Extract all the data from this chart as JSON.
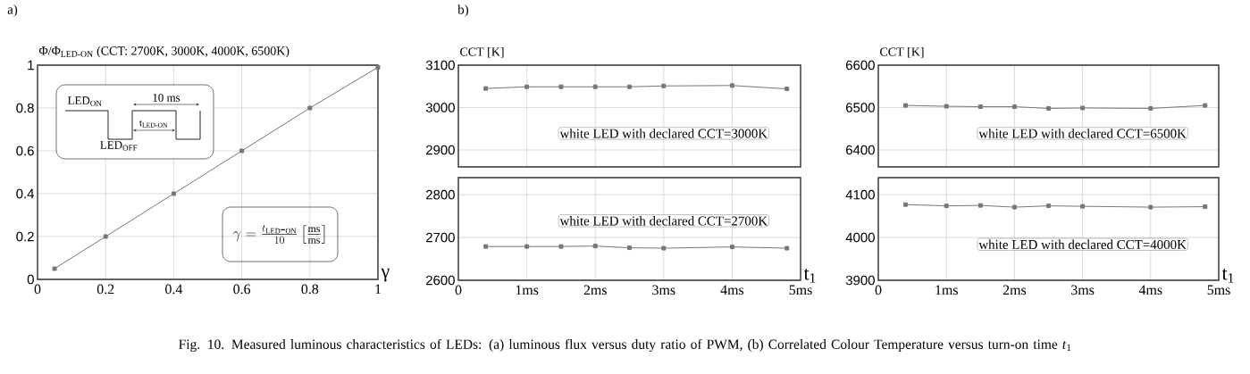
{
  "chart_data": [
    {
      "type": "line",
      "x": [
        0.05,
        0.2,
        0.4,
        0.6,
        0.8,
        1
      ],
      "xlim": [
        0,
        1
      ],
      "ylim": [
        0,
        1
      ],
      "xticks": [
        0,
        0.2,
        0.4,
        0.6,
        0.8,
        1
      ],
      "yticks": [
        0,
        0.2,
        0.4,
        0.6,
        0.8,
        1
      ],
      "xlabel": "γ",
      "ylabel": "Φ/Φ$_{LED-ON}$ (CCT: 2700K, 3000K, 4000K, 6500K)",
      "grid": true,
      "marker": "square",
      "series": [
        {
          "color": "#777777",
          "values": [
            0.05,
            0.2,
            0.4,
            0.6,
            0.8,
            0.99
          ]
        }
      ],
      "annotations": [
        "a)",
        "LED$_{ON}$",
        "10 ms",
        "t$_{LED-ON}$",
        "LED$_{OFF}$",
        "\\gamma=\\frac{t_{\\mathrm{LED\\mbox{-}ON}}}{10}\\left[\\frac{\\mathrm{ms}}{\\mathrm{ms}}\\right]",
        "Fig. 10. Measured luminous characteristics of LEDs: (a) luminous flux versus duty ratio of PWM, (b) Correlated Colour Temperature versus turn-on time *t*$_{1}$"
      ]
    },
    {
      "type": "line",
      "x": [
        0.4,
        1,
        1.5,
        2,
        2.5,
        3,
        4,
        4.8
      ],
      "xlim": [
        0,
        5
      ],
      "ylim": [
        2860,
        3100
      ],
      "xticks": [
        0,
        1,
        2,
        3,
        4,
        5
      ],
      "yticks": [
        2900,
        3000,
        3100
      ],
      "ylabel": "CCT [K]",
      "grid": true,
      "marker": "square",
      "tick_labels": "y",
      "series": [
        {
          "color": "#777777",
          "values": [
            3045,
            3049,
            3049,
            3049,
            3049,
            3051,
            3052,
            3044
          ]
        }
      ],
      "annotations": [
        "b)",
        "white LED with declared CCT=3000K"
      ]
    },
    {
      "type": "line",
      "x": [
        0.4,
        1,
        1.5,
        2,
        2.5,
        3,
        4,
        4.8
      ],
      "xlim": [
        0,
        5
      ],
      "ylim": [
        2600,
        2840
      ],
      "xticks": [
        0,
        {
          "value": 1,
          "label": "1ms"
        },
        {
          "value": 2,
          "label": "2ms"
        },
        {
          "value": 3,
          "label": "3ms"
        },
        {
          "value": 4,
          "label": "4ms"
        },
        {
          "value": 5,
          "label": "5ms"
        }
      ],
      "yticks": [
        2600,
        2700,
        2800
      ],
      "xlabel": "t$_{1}$",
      "grid": true,
      "marker": "square",
      "series": [
        {
          "color": "#777777",
          "values": [
            2679,
            2679,
            2679,
            2680,
            2676,
            2675,
            2678,
            2675
          ]
        }
      ],
      "annotations": [
        "white LED with declared CCT=2700K"
      ]
    },
    {
      "type": "line",
      "x": [
        0.4,
        1,
        1.5,
        2,
        2.5,
        3,
        4,
        4.8
      ],
      "xlim": [
        0,
        5
      ],
      "ylim": [
        6360,
        6600
      ],
      "xticks": [
        0,
        1,
        2,
        3,
        4,
        5
      ],
      "yticks": [
        6400,
        6500,
        6600
      ],
      "ylabel": "CCT [K]",
      "grid": true,
      "marker": "square",
      "tick_labels": "y",
      "series": [
        {
          "color": "#777777",
          "values": [
            6505,
            6503,
            6502,
            6502,
            6498,
            6499,
            6498,
            6505
          ]
        }
      ],
      "annotations": [
        "white LED with declared CCT=6500K"
      ]
    },
    {
      "type": "line",
      "x": [
        0.4,
        1,
        1.5,
        2,
        2.5,
        3,
        4,
        4.8
      ],
      "xlim": [
        0,
        5
      ],
      "ylim": [
        3900,
        4140
      ],
      "xticks": [
        0,
        {
          "value": 1,
          "label": "1ms"
        },
        {
          "value": 2,
          "label": "2ms"
        },
        {
          "value": 3,
          "label": "3ms"
        },
        {
          "value": 4,
          "label": "4ms"
        },
        {
          "value": 5,
          "label": "5ms"
        }
      ],
      "yticks": [
        3900,
        4000,
        4100
      ],
      "xlabel": "t$_{1}$",
      "grid": true,
      "marker": "square",
      "series": [
        {
          "color": "#777777",
          "values": [
            4077,
            4074,
            4075,
            4071,
            4074,
            4073,
            4071,
            4072
          ]
        }
      ],
      "annotations": [
        "white LED with declared CCT=4000K"
      ]
    }
  ]
}
